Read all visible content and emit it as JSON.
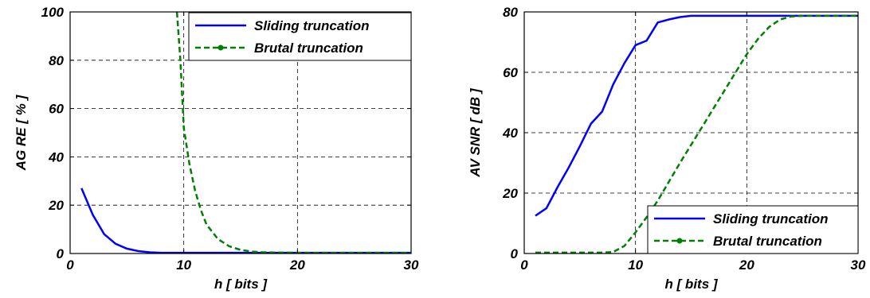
{
  "chart_data": [
    {
      "type": "line",
      "title": "",
      "xlabel": "h [ bits ]",
      "ylabel": "AG RE [ % ]",
      "xlim": [
        0,
        30
      ],
      "ylim": [
        0,
        100
      ],
      "xticks": [
        "0",
        "10",
        "20",
        "30"
      ],
      "yticks": [
        "0",
        "20",
        "40",
        "60",
        "80",
        "100"
      ],
      "grid": true,
      "legend": "top-right",
      "series": [
        {
          "name": "Sliding truncation",
          "color": "#0000ff",
          "style": "solid",
          "x": [
            1,
            2,
            3,
            4,
            5,
            6,
            7,
            8,
            9,
            10,
            12,
            15,
            20,
            25,
            30
          ],
          "y": [
            27,
            16,
            8,
            4,
            2,
            1,
            0.5,
            0.3,
            0.3,
            0.3,
            0.3,
            0.3,
            0.3,
            0.3,
            0.3
          ]
        },
        {
          "name": "Brutal truncation",
          "color": "#008000",
          "style": "dashed",
          "x": [
            9.4,
            9.7,
            10,
            10.5,
            11,
            11.5,
            12,
            13,
            14,
            15,
            16,
            17,
            20,
            25,
            30
          ],
          "y": [
            100,
            80,
            52,
            37,
            26,
            18,
            12,
            6,
            3,
            1.5,
            0.8,
            0.5,
            0.3,
            0.3,
            0.3
          ]
        }
      ]
    },
    {
      "type": "line",
      "title": "",
      "xlabel": "h [ bits ]",
      "ylabel": "AV SNR [ dB ]",
      "xlim": [
        0,
        30
      ],
      "ylim": [
        0,
        80
      ],
      "xticks": [
        "0",
        "10",
        "20",
        "30"
      ],
      "yticks": [
        "0",
        "20",
        "40",
        "60",
        "80"
      ],
      "grid": true,
      "legend": "bottom-right",
      "series": [
        {
          "name": "Sliding truncation",
          "color": "#0000ff",
          "style": "solid",
          "x": [
            1,
            2,
            3,
            4,
            5,
            6,
            7,
            8,
            9,
            10,
            11,
            12,
            13,
            14,
            15,
            20,
            25,
            30
          ],
          "y": [
            12.5,
            15,
            22,
            28.5,
            35.5,
            43,
            47,
            56,
            63,
            69,
            70.5,
            76.5,
            77.5,
            78.3,
            78.7,
            78.7,
            78.7,
            78.7
          ]
        },
        {
          "name": "Brutal truncation",
          "color": "#008000",
          "style": "dashed",
          "x": [
            1,
            7,
            8,
            9,
            10,
            11,
            12,
            14,
            16,
            18,
            20,
            21,
            22,
            23,
            24,
            25,
            30
          ],
          "y": [
            0.3,
            0.3,
            0.5,
            2.5,
            7,
            12,
            17.5,
            30,
            42,
            54,
            66,
            71,
            75,
            77.5,
            78.5,
            78.7,
            78.7
          ]
        }
      ]
    }
  ]
}
